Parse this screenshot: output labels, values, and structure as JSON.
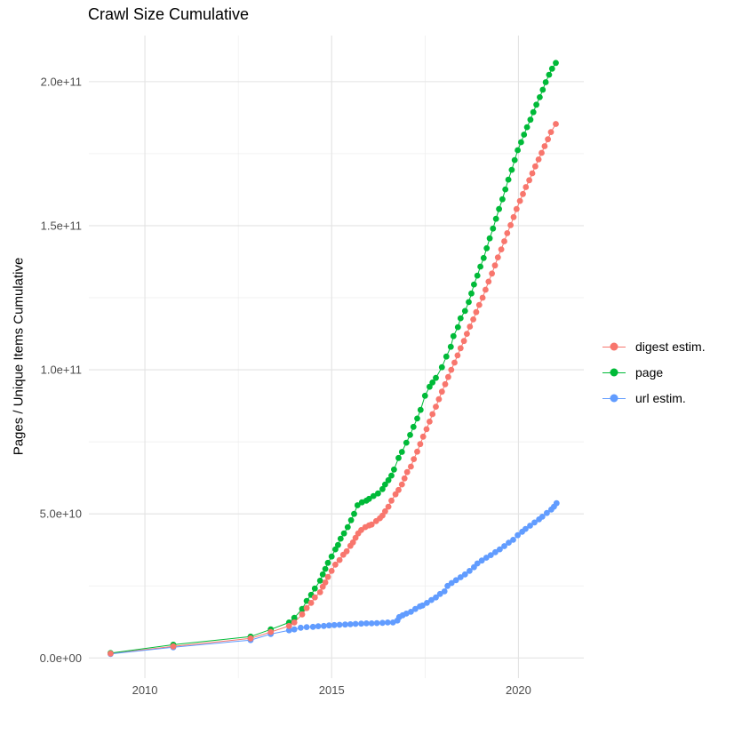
{
  "title": "Crawl Size Cumulative",
  "chart_data": {
    "type": "scatter-line",
    "title": "Crawl Size Cumulative",
    "xlabel": "",
    "ylabel": "Pages / Unique Items Cumulative",
    "grid": true,
    "legend_position": "right",
    "x_range": [
      2008.5,
      2021.75
    ],
    "y_range_e9": [
      -7,
      216
    ],
    "x_ticks": [
      {
        "value": 2010,
        "label": "2010"
      },
      {
        "value": 2015,
        "label": "2015"
      },
      {
        "value": 2020,
        "label": "2020"
      }
    ],
    "x_minor_ticks": [
      2012.5,
      2017.5
    ],
    "y_ticks": [
      {
        "value_e9": 0,
        "label": "0.0e+00"
      },
      {
        "value_e9": 50,
        "label": "5.0e+10"
      },
      {
        "value_e9": 100,
        "label": "1.0e+11"
      },
      {
        "value_e9": 150,
        "label": "1.5e+11"
      },
      {
        "value_e9": 200,
        "label": "2.0e+11"
      }
    ],
    "y_minor_ticks_e9": [
      25,
      75,
      125,
      175
    ],
    "colors": {
      "digest_estim": "#F8766D",
      "page": "#00BA38",
      "url_estim": "#619CFF",
      "grid_major": "#E3E3E3",
      "grid_minor": "#EDEDED",
      "tick_text": "#4D4D4D"
    },
    "series": [
      {
        "name": "digest estim.",
        "color": "#F8766D",
        "points": [
          [
            2009.08,
            1.5
          ],
          [
            2010.76,
            4.0
          ],
          [
            2012.83,
            6.8
          ],
          [
            2013.37,
            9.0
          ],
          [
            2013.86,
            11.1
          ],
          [
            2014.0,
            12.3
          ],
          [
            2014.21,
            15.1
          ],
          [
            2014.33,
            17.3
          ],
          [
            2014.45,
            19.1
          ],
          [
            2014.55,
            21.0
          ],
          [
            2014.69,
            22.8
          ],
          [
            2014.76,
            24.7
          ],
          [
            2014.83,
            26.2
          ],
          [
            2014.9,
            28.1
          ],
          [
            2015.0,
            30.2
          ],
          [
            2015.1,
            32.4
          ],
          [
            2015.21,
            34.0
          ],
          [
            2015.31,
            35.8
          ],
          [
            2015.4,
            37.0
          ],
          [
            2015.5,
            38.9
          ],
          [
            2015.57,
            40.1
          ],
          [
            2015.64,
            41.7
          ],
          [
            2015.71,
            43.2
          ],
          [
            2015.79,
            44.4
          ],
          [
            2015.9,
            45.4
          ],
          [
            2016.0,
            46.0
          ],
          [
            2016.07,
            46.3
          ],
          [
            2016.19,
            47.5
          ],
          [
            2016.29,
            48.5
          ],
          [
            2016.36,
            49.4
          ],
          [
            2016.43,
            50.9
          ],
          [
            2016.52,
            52.5
          ],
          [
            2016.6,
            54.6
          ],
          [
            2016.71,
            56.8
          ],
          [
            2016.79,
            58.3
          ],
          [
            2016.88,
            60.2
          ],
          [
            2016.95,
            62.3
          ],
          [
            2017.02,
            64.5
          ],
          [
            2017.12,
            66.4
          ],
          [
            2017.2,
            69.0
          ],
          [
            2017.29,
            71.6
          ],
          [
            2017.37,
            74.2
          ],
          [
            2017.45,
            76.8
          ],
          [
            2017.54,
            79.4
          ],
          [
            2017.62,
            82.0
          ],
          [
            2017.7,
            84.6
          ],
          [
            2017.79,
            87.2
          ],
          [
            2017.87,
            89.8
          ],
          [
            2017.95,
            92.4
          ],
          [
            2018.04,
            95.0
          ],
          [
            2018.12,
            97.5
          ],
          [
            2018.2,
            100.0
          ],
          [
            2018.29,
            102.5
          ],
          [
            2018.37,
            105.0
          ],
          [
            2018.45,
            107.5
          ],
          [
            2018.54,
            110.0
          ],
          [
            2018.62,
            112.5
          ],
          [
            2018.7,
            115.0
          ],
          [
            2018.79,
            117.5
          ],
          [
            2018.87,
            120.0
          ],
          [
            2018.95,
            122.5
          ],
          [
            2019.04,
            125.0
          ],
          [
            2019.12,
            127.8
          ],
          [
            2019.2,
            130.6
          ],
          [
            2019.29,
            133.4
          ],
          [
            2019.37,
            136.2
          ],
          [
            2019.45,
            139.0
          ],
          [
            2019.54,
            141.8
          ],
          [
            2019.62,
            144.6
          ],
          [
            2019.7,
            147.4
          ],
          [
            2019.79,
            150.2
          ],
          [
            2019.87,
            153.0
          ],
          [
            2019.95,
            155.8
          ],
          [
            2020.04,
            158.6
          ],
          [
            2020.12,
            161.0
          ],
          [
            2020.2,
            163.4
          ],
          [
            2020.29,
            165.8
          ],
          [
            2020.37,
            168.2
          ],
          [
            2020.45,
            170.6
          ],
          [
            2020.54,
            173.0
          ],
          [
            2020.62,
            175.3
          ],
          [
            2020.7,
            177.6
          ],
          [
            2020.79,
            180.0
          ],
          [
            2020.87,
            182.5
          ],
          [
            2021.0,
            185.3
          ]
        ]
      },
      {
        "name": "page",
        "color": "#00BA38",
        "points": [
          [
            2009.08,
            1.7
          ],
          [
            2010.76,
            4.6
          ],
          [
            2012.83,
            7.4
          ],
          [
            2013.37,
            9.9
          ],
          [
            2013.86,
            12.3
          ],
          [
            2014.0,
            13.9
          ],
          [
            2014.21,
            17.0
          ],
          [
            2014.33,
            19.8
          ],
          [
            2014.45,
            21.9
          ],
          [
            2014.55,
            24.1
          ],
          [
            2014.69,
            26.8
          ],
          [
            2014.76,
            29.0
          ],
          [
            2014.83,
            30.9
          ],
          [
            2014.9,
            33.0
          ],
          [
            2015.0,
            35.2
          ],
          [
            2015.1,
            37.7
          ],
          [
            2015.17,
            39.2
          ],
          [
            2015.24,
            41.4
          ],
          [
            2015.33,
            43.2
          ],
          [
            2015.43,
            45.4
          ],
          [
            2015.52,
            47.8
          ],
          [
            2015.6,
            50.0
          ],
          [
            2015.69,
            53.0
          ],
          [
            2015.81,
            54.0
          ],
          [
            2015.93,
            54.6
          ],
          [
            2016.0,
            55.2
          ],
          [
            2016.12,
            56.2
          ],
          [
            2016.24,
            57.1
          ],
          [
            2016.36,
            58.6
          ],
          [
            2016.43,
            60.2
          ],
          [
            2016.52,
            61.7
          ],
          [
            2016.6,
            63.3
          ],
          [
            2016.67,
            65.4
          ],
          [
            2016.79,
            69.4
          ],
          [
            2016.88,
            71.5
          ],
          [
            2017.0,
            74.7
          ],
          [
            2017.1,
            77.4
          ],
          [
            2017.19,
            80.2
          ],
          [
            2017.29,
            83.1
          ],
          [
            2017.38,
            86.1
          ],
          [
            2017.5,
            91.0
          ],
          [
            2017.62,
            94.1
          ],
          [
            2017.7,
            95.6
          ],
          [
            2017.79,
            97.2
          ],
          [
            2017.95,
            100.9
          ],
          [
            2018.07,
            104.6
          ],
          [
            2018.19,
            108.0
          ],
          [
            2018.26,
            111.7
          ],
          [
            2018.38,
            114.8
          ],
          [
            2018.45,
            117.9
          ],
          [
            2018.57,
            120.4
          ],
          [
            2018.67,
            123.5
          ],
          [
            2018.74,
            126.5
          ],
          [
            2018.81,
            129.6
          ],
          [
            2018.9,
            132.7
          ],
          [
            2018.98,
            135.8
          ],
          [
            2019.07,
            138.8
          ],
          [
            2019.15,
            142.2
          ],
          [
            2019.23,
            145.6
          ],
          [
            2019.32,
            149.0
          ],
          [
            2019.4,
            152.4
          ],
          [
            2019.48,
            155.8
          ],
          [
            2019.57,
            159.2
          ],
          [
            2019.65,
            162.6
          ],
          [
            2019.73,
            166.0
          ],
          [
            2019.82,
            169.4
          ],
          [
            2019.9,
            172.8
          ],
          [
            2019.98,
            176.2
          ],
          [
            2020.07,
            179.0
          ],
          [
            2020.15,
            181.6
          ],
          [
            2020.23,
            184.2
          ],
          [
            2020.32,
            186.8
          ],
          [
            2020.4,
            189.4
          ],
          [
            2020.48,
            192.0
          ],
          [
            2020.57,
            194.6
          ],
          [
            2020.65,
            197.2
          ],
          [
            2020.73,
            199.8
          ],
          [
            2020.82,
            202.4
          ],
          [
            2020.9,
            204.5
          ],
          [
            2021.0,
            206.5
          ]
        ]
      },
      {
        "name": "url estim.",
        "color": "#619CFF",
        "points": [
          [
            2009.08,
            1.4
          ],
          [
            2010.76,
            3.7
          ],
          [
            2012.83,
            6.2
          ],
          [
            2013.37,
            8.3
          ],
          [
            2013.86,
            9.6
          ],
          [
            2014.0,
            9.9
          ],
          [
            2014.17,
            10.5
          ],
          [
            2014.33,
            10.7
          ],
          [
            2014.5,
            10.8
          ],
          [
            2014.64,
            11.0
          ],
          [
            2014.79,
            11.1
          ],
          [
            2014.93,
            11.3
          ],
          [
            2015.07,
            11.4
          ],
          [
            2015.21,
            11.5
          ],
          [
            2015.36,
            11.6
          ],
          [
            2015.5,
            11.7
          ],
          [
            2015.64,
            11.8
          ],
          [
            2015.79,
            11.9
          ],
          [
            2015.93,
            12.0
          ],
          [
            2016.07,
            12.0
          ],
          [
            2016.21,
            12.1
          ],
          [
            2016.36,
            12.2
          ],
          [
            2016.5,
            12.3
          ],
          [
            2016.64,
            12.3
          ],
          [
            2016.76,
            13.0
          ],
          [
            2016.81,
            14.2
          ],
          [
            2016.9,
            14.8
          ],
          [
            2017.0,
            15.4
          ],
          [
            2017.12,
            16.0
          ],
          [
            2017.24,
            17.0
          ],
          [
            2017.36,
            17.9
          ],
          [
            2017.43,
            18.2
          ],
          [
            2017.55,
            19.1
          ],
          [
            2017.67,
            20.1
          ],
          [
            2017.79,
            21.0
          ],
          [
            2017.9,
            22.2
          ],
          [
            2018.02,
            23.1
          ],
          [
            2018.1,
            25.0
          ],
          [
            2018.21,
            26.0
          ],
          [
            2018.33,
            27.0
          ],
          [
            2018.45,
            28.0
          ],
          [
            2018.57,
            29.0
          ],
          [
            2018.69,
            30.2
          ],
          [
            2018.81,
            31.5
          ],
          [
            2018.9,
            32.8
          ],
          [
            2019.02,
            33.8
          ],
          [
            2019.14,
            34.8
          ],
          [
            2019.26,
            35.7
          ],
          [
            2019.38,
            36.7
          ],
          [
            2019.5,
            37.7
          ],
          [
            2019.62,
            38.8
          ],
          [
            2019.74,
            40.0
          ],
          [
            2019.86,
            41.0
          ],
          [
            2019.98,
            42.6
          ],
          [
            2020.1,
            43.8
          ],
          [
            2020.19,
            44.8
          ],
          [
            2020.31,
            45.9
          ],
          [
            2020.43,
            47.0
          ],
          [
            2020.55,
            48.1
          ],
          [
            2020.64,
            49.0
          ],
          [
            2020.76,
            50.3
          ],
          [
            2020.88,
            51.5
          ],
          [
            2020.95,
            52.5
          ],
          [
            2021.02,
            53.7
          ]
        ]
      }
    ]
  }
}
